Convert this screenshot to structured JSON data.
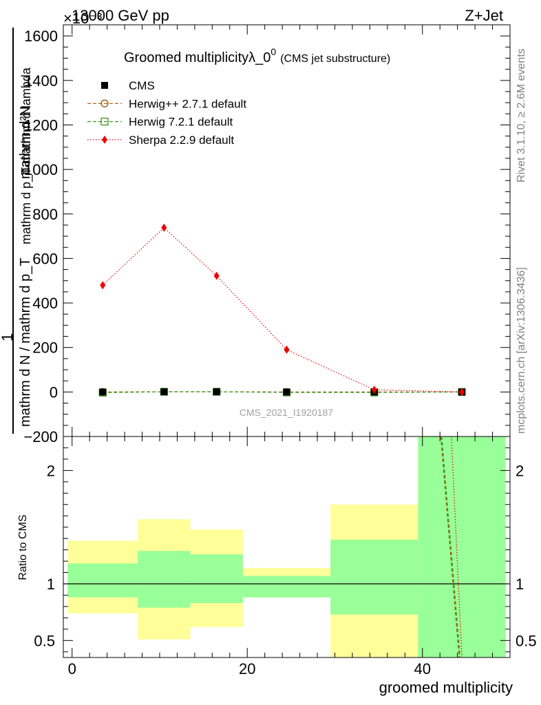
{
  "header": {
    "left": "13000 GeV pp",
    "right": "Z+Jet",
    "exponent": "×10⁻³"
  },
  "side_labels": {
    "rivet": "Rivet 3.1.10, ≥ 2.6M events",
    "mcplots": "mcplots.cern.ch [arXiv:1306.3436]"
  },
  "colors": {
    "cms": "#000000",
    "herwigpp": "#a05000",
    "herwig7": "#3a9a1e",
    "sherpa": "#ee0000",
    "band_inner": "#99ff99",
    "band_outer": "#ffff99"
  },
  "chart_data": [
    {
      "type": "line",
      "title": "Groomed multiplicityλ_0",
      "title_sup": "0",
      "subtitle": "(CMS jet substructure)",
      "watermark": "CMS_2021_I1920187",
      "ylabel": "1 / mathrm d N / mathrm d p_T  mathrm d²N / mathrm d p_T mathrm d lambda",
      "ylabel_lines": {
        "top_num": "mathrm d²N",
        "top_den": "mathrm d p_T mathrm d lambda",
        "top_den_alt": "mathrm d p  mathrm d lambda",
        "one": "1",
        "bottom_den": "mathrm d N / mathrm d p_T"
      },
      "xlim": [
        -1,
        50
      ],
      "ylim": [
        -200,
        1650
      ],
      "y_scale_note": "values ×10⁻³",
      "yticks": [
        -200,
        0,
        200,
        400,
        600,
        800,
        1000,
        1200,
        1400,
        1600
      ],
      "ytick_labels": [
        "−200",
        "0",
        "200",
        "400",
        "600",
        "800",
        "1000",
        "1200",
        "1400",
        "1600"
      ],
      "legend": [
        "CMS",
        "Herwig++ 2.7.1 default",
        "Herwig 7.2.1 default",
        "Sherpa 2.2.9 default"
      ],
      "series": [
        {
          "name": "CMS",
          "x": [
            3.5,
            10.5,
            16.5,
            24.5,
            34.5,
            44.5
          ],
          "values": [
            0,
            1,
            1,
            0,
            0,
            0
          ]
        },
        {
          "name": "Herwig++ 2.7.1 default",
          "x": [
            3.5,
            10.5,
            16.5,
            24.5,
            34.5,
            44.5
          ],
          "values": [
            0,
            1,
            1,
            0,
            0,
            0
          ]
        },
        {
          "name": "Herwig 7.2.1 default",
          "x": [
            3.5,
            10.5,
            16.5,
            24.5,
            34.5,
            44.5
          ],
          "values": [
            -3,
            1,
            1,
            -2,
            -2,
            0
          ]
        },
        {
          "name": "Sherpa 2.2.9 default",
          "x": [
            3.5,
            10.5,
            16.5,
            24.5,
            34.5,
            44.5
          ],
          "values": [
            480,
            738,
            522,
            190,
            10,
            0
          ]
        }
      ]
    },
    {
      "type": "area",
      "ylabel": "Ratio to CMS",
      "xlabel": "groomed multiplicity",
      "xlim": [
        -1,
        50
      ],
      "ylim": [
        0.35,
        2.3
      ],
      "xticks": [
        0,
        20,
        40
      ],
      "xtick_labels": [
        "0",
        "20",
        "40"
      ],
      "yticks": [
        0.5,
        1,
        2
      ],
      "ytick_labels": [
        "0.5",
        "1",
        "2"
      ],
      "bins": [
        {
          "lo": -0.5,
          "hi": 7.5,
          "inner": [
            0.88,
            1.18
          ],
          "outer": [
            0.74,
            1.38
          ]
        },
        {
          "lo": 7.5,
          "hi": 13.5,
          "inner": [
            0.79,
            1.29
          ],
          "outer": [
            0.51,
            1.57
          ]
        },
        {
          "lo": 13.5,
          "hi": 19.5,
          "inner": [
            0.83,
            1.26
          ],
          "outer": [
            0.62,
            1.48
          ]
        },
        {
          "lo": 19.5,
          "hi": 29.5,
          "inner": [
            0.88,
            1.07
          ],
          "outer": [
            0.88,
            1.14
          ]
        },
        {
          "lo": 29.5,
          "hi": 39.5,
          "inner": [
            0.73,
            1.39
          ],
          "outer": [
            0.35,
            1.7
          ]
        },
        {
          "lo": 39.5,
          "hi": 49.5,
          "inner": [
            0.35,
            2.3
          ],
          "outer": [
            0.35,
            2.3
          ]
        }
      ],
      "ratio_lines": [
        {
          "name": "Herwig++ 2.7.1 default",
          "x": [
            42.1,
            44.2
          ],
          "values": [
            2.3,
            0.35
          ]
        },
        {
          "name": "Herwig 7.2.1 default",
          "x": [
            42.2,
            44.3
          ],
          "values": [
            2.3,
            0.35
          ]
        },
        {
          "name": "Sherpa 2.2.9 default",
          "x": [
            43.3,
            44.5
          ],
          "values": [
            2.3,
            0.35
          ]
        }
      ]
    }
  ]
}
